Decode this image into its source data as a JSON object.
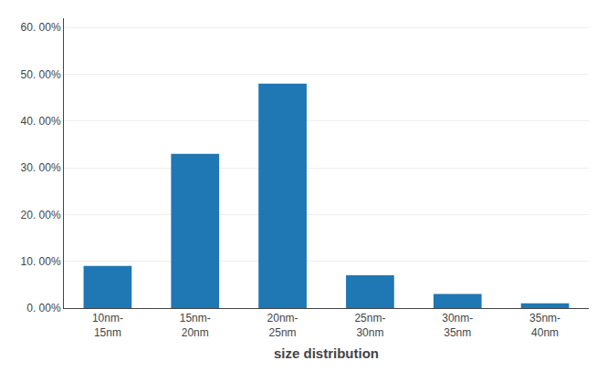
{
  "chart_data": {
    "type": "bar",
    "xlabel": "size distribution",
    "categories": [
      "10nm-\n15nm",
      "15nm-\n20nm",
      "20nm-\n25nm",
      "25nm-\n30nm",
      "30nm-\n35nm",
      "35nm-\n40nm"
    ],
    "values": [
      0.09,
      0.33,
      0.48,
      0.07,
      0.03,
      0.01
    ],
    "ylim": [
      0,
      0.62
    ],
    "yticks": [
      {
        "value": 0.0,
        "label": "0. 00%"
      },
      {
        "value": 0.1,
        "label": "10. 00%"
      },
      {
        "value": 0.2,
        "label": "20. 00%"
      },
      {
        "value": 0.3,
        "label": "30. 00%"
      },
      {
        "value": 0.4,
        "label": "40. 00%"
      },
      {
        "value": 0.5,
        "label": "50. 00%"
      },
      {
        "value": 0.6,
        "label": "60. 00%"
      }
    ],
    "grid": true
  }
}
